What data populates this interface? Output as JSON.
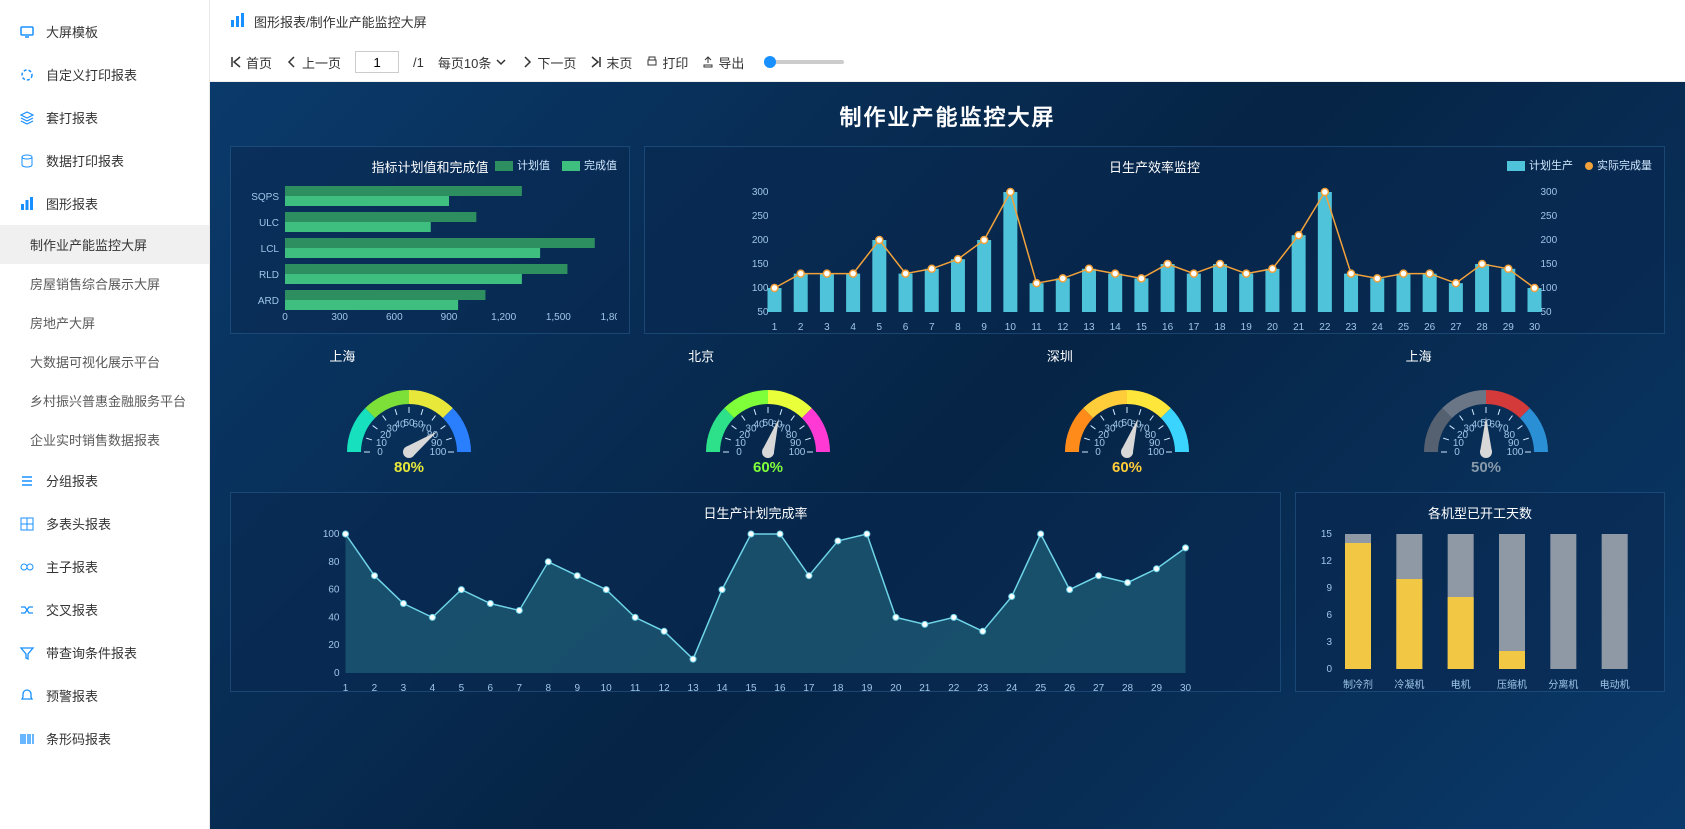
{
  "sidebar": {
    "items": [
      {
        "icon": "monitor",
        "label": "大屏模板"
      },
      {
        "icon": "circle",
        "label": "自定义打印报表"
      },
      {
        "icon": "layers",
        "label": "套打报表"
      },
      {
        "icon": "database",
        "label": "数据打印报表"
      },
      {
        "icon": "bar",
        "label": "图形报表",
        "expanded": true,
        "children": [
          {
            "label": "制作业产能监控大屏",
            "active": true
          },
          {
            "label": "房屋销售综合展示大屏"
          },
          {
            "label": "房地产大屏"
          },
          {
            "label": "大数据可视化展示平台"
          },
          {
            "label": "乡村振兴普惠金融服务平台"
          },
          {
            "label": "企业实时销售数据报表"
          }
        ]
      },
      {
        "icon": "list",
        "label": "分组报表"
      },
      {
        "icon": "grid",
        "label": "多表头报表"
      },
      {
        "icon": "link",
        "label": "主子报表"
      },
      {
        "icon": "shuffle",
        "label": "交叉报表"
      },
      {
        "icon": "filter",
        "label": "带查询条件报表"
      },
      {
        "icon": "bell",
        "label": "预警报表"
      },
      {
        "icon": "barcode",
        "label": "条形码报表"
      }
    ]
  },
  "breadcrumb": {
    "text": "图形报表/制作业产能监控大屏"
  },
  "toolbar": {
    "first": "首页",
    "prev": "上一页",
    "page": "1",
    "total": "/1",
    "perpage": "每页10条",
    "next": "下一页",
    "last": "末页",
    "print": "打印",
    "export": "导出"
  },
  "dashboard": {
    "title": "制作业产能监控大屏",
    "hbar": {
      "title": "指标计划值和完成值",
      "legend": [
        "计划值",
        "完成值"
      ],
      "legend_colors": [
        "#2d8f5f",
        "#3fbf7f"
      ],
      "categories": [
        "SQPS",
        "ULC",
        "LCL",
        "RLD",
        "ARD"
      ],
      "plan": [
        1300,
        1050,
        1700,
        1550,
        1100
      ],
      "done": [
        900,
        800,
        1400,
        1300,
        950
      ],
      "xlim": [
        0,
        1800
      ],
      "xtick_step": 300,
      "bar_color_plan": "#2d8f5f",
      "bar_color_done": "#3fbf7f"
    },
    "line": {
      "title": "日生产效率监控",
      "legend": [
        "计划生产",
        "实际完成量"
      ],
      "legend_colors": [
        "#4fc3d9",
        "#f2a23a"
      ],
      "x": [
        1,
        2,
        3,
        4,
        5,
        6,
        7,
        8,
        9,
        10,
        11,
        12,
        13,
        14,
        15,
        16,
        17,
        18,
        19,
        20,
        21,
        22,
        23,
        24,
        25,
        26,
        27,
        28,
        29,
        30
      ],
      "plan": [
        100,
        130,
        130,
        130,
        200,
        130,
        140,
        160,
        200,
        300,
        110,
        120,
        140,
        130,
        120,
        150,
        130,
        150,
        130,
        140,
        210,
        300,
        130,
        120,
        130,
        130,
        110,
        150,
        140,
        100
      ],
      "actual": [
        100,
        130,
        130,
        130,
        200,
        130,
        140,
        160,
        200,
        300,
        110,
        120,
        140,
        130,
        120,
        150,
        130,
        150,
        130,
        140,
        210,
        300,
        130,
        120,
        130,
        130,
        110,
        150,
        140,
        100
      ],
      "ylim": [
        50,
        300
      ],
      "ytick_step": 50,
      "bar_color": "#4fc3d9",
      "line_color": "#f2a23a",
      "dot_fill": "#ffffff"
    },
    "gauges": [
      {
        "city": "上海",
        "value": 80,
        "label": "80%",
        "colors": [
          "#16e0bd",
          "#7de038",
          "#e8e83a",
          "#2a7fff"
        ],
        "text_color": "#e8e83a"
      },
      {
        "city": "北京",
        "value": 60,
        "label": "60%",
        "colors": [
          "#2de08a",
          "#7fff3a",
          "#e8ff3a",
          "#ff3ad4"
        ],
        "text_color": "#7fff3a"
      },
      {
        "city": "深圳",
        "value": 60,
        "label": "60%",
        "colors": [
          "#ff8c1a",
          "#ffcc3a",
          "#ffe63a",
          "#3ad4ff"
        ],
        "text_color": "#ffcc3a"
      },
      {
        "city": "上海",
        "value": 50,
        "label": "50%",
        "colors": [
          "#556070",
          "#6a7585",
          "#d43a3a",
          "#2a8fd4"
        ],
        "text_color": "#8899aa"
      }
    ],
    "area": {
      "title": "日生产计划完成率",
      "x": [
        1,
        2,
        3,
        4,
        5,
        6,
        7,
        8,
        9,
        10,
        11,
        12,
        13,
        14,
        15,
        16,
        17,
        18,
        19,
        20,
        21,
        22,
        23,
        24,
        25,
        26,
        27,
        28,
        29,
        30
      ],
      "y": [
        100,
        70,
        50,
        40,
        60,
        50,
        45,
        80,
        70,
        60,
        40,
        30,
        10,
        60,
        100,
        100,
        70,
        95,
        100,
        40,
        35,
        40,
        30,
        55,
        100,
        60,
        70,
        65,
        75,
        90
      ],
      "ylim": [
        0,
        100
      ],
      "ytick_step": 20,
      "fill": "#1f5f78",
      "line": "#6fd4e8",
      "dot": "#ffffff"
    },
    "vbar": {
      "title": "各机型已开工天数",
      "categories": [
        "制冷剂",
        "冷凝机",
        "电机",
        "压缩机",
        "分离机",
        "电动机"
      ],
      "bg": [
        15,
        15,
        15,
        15,
        15,
        15
      ],
      "val": [
        14,
        10,
        8,
        2,
        0,
        0
      ],
      "ylim": [
        0,
        15
      ],
      "ytick_step": 3,
      "bg_color": "#8f99a6",
      "val_color": "#f2c744"
    }
  },
  "colors": {
    "sidebar_icon": "#1890ff",
    "dash_bg": "#0a3a6b"
  }
}
